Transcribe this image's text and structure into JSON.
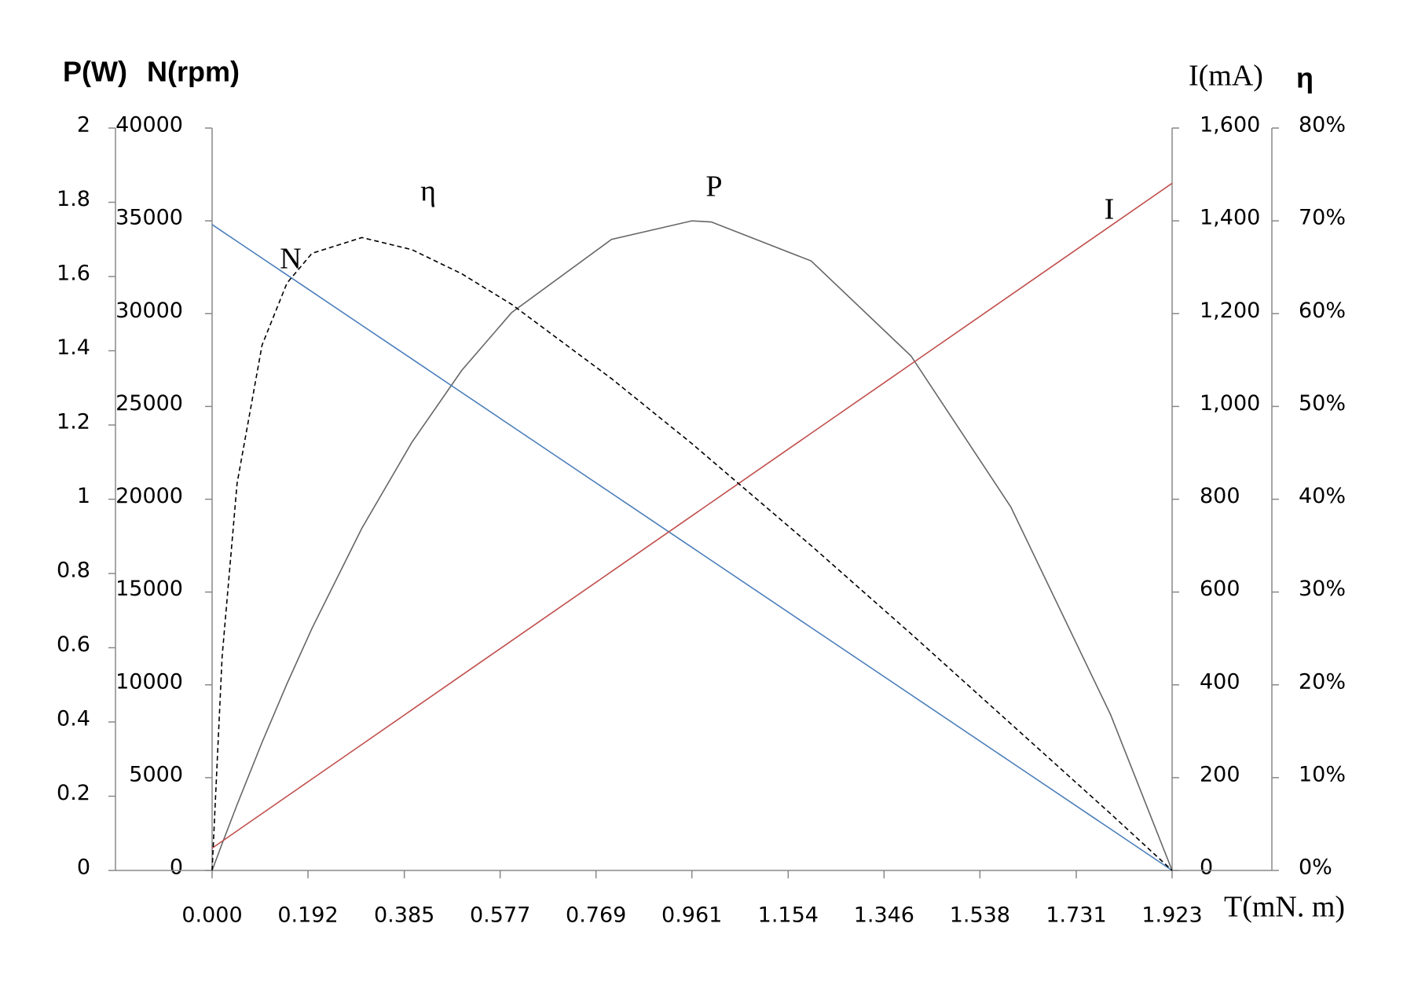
{
  "chart_data": {
    "type": "line",
    "x_label": "T(mN. m)",
    "y_label": "P(W)",
    "y2_label": "N(rpm)",
    "y3_label": "I(mA)",
    "y4_label": "η",
    "annotations": [
      "η",
      "P",
      "N",
      "I"
    ],
    "x": [
      0,
      0.02,
      0.05,
      0.1,
      0.15,
      0.2,
      0.3,
      0.4,
      0.5,
      0.6,
      0.8,
      0.961,
      1.0,
      1.2,
      1.4,
      1.6,
      1.8,
      1.923
    ],
    "series": [
      {
        "name": "P",
        "color": "#666666",
        "axis": "y",
        "dashed": false,
        "values": [
          0,
          0.072,
          0.177,
          0.345,
          0.503,
          0.652,
          0.922,
          1.153,
          1.347,
          1.503,
          1.7,
          1.75,
          1.747,
          1.642,
          1.386,
          0.979,
          0.419,
          0
        ]
      },
      {
        "name": "N",
        "color": "#4a7ebb",
        "axis": "y2",
        "dashed": false,
        "values": [
          34800,
          34438,
          33895,
          32990,
          32086,
          31181,
          29371,
          27562,
          25752,
          23942,
          20323,
          17410,
          16704,
          13085,
          9466,
          5846,
          2227,
          0
        ]
      },
      {
        "name": "I",
        "color": "#c0504d",
        "axis": "y3",
        "dashed": false,
        "values": [
          48,
          62.9,
          85.3,
          122.5,
          159.8,
          197,
          271.5,
          346.1,
          420.6,
          495.1,
          644.1,
          764.1,
          793.2,
          942.2,
          1091.2,
          1240.3,
          1389.3,
          1481
        ]
      },
      {
        "name": "η",
        "color": "#000000",
        "axis": "y4",
        "dashed": true,
        "values": [
          0,
          23,
          41.7,
          56.6,
          63.3,
          66.5,
          68.2,
          66.9,
          64.3,
          61,
          53,
          46,
          44.2,
          35,
          25.5,
          15.8,
          6.1,
          0
        ]
      }
    ],
    "xlim": [
      0,
      1.923
    ],
    "xticks": [
      {
        "value": 0,
        "label": "0.000"
      },
      0.192,
      0.385,
      0.577,
      0.769,
      0.961,
      1.154,
      1.346,
      1.538,
      1.731,
      1.923
    ],
    "ylim": [
      0,
      2
    ],
    "yticks": [
      0,
      0.2,
      0.4,
      0.6,
      0.8,
      1,
      1.2,
      1.4,
      1.6,
      1.8,
      2
    ],
    "y2lim": [
      0,
      40000
    ],
    "y2ticks": [
      0,
      5000,
      10000,
      15000,
      20000,
      25000,
      30000,
      35000,
      40000
    ],
    "y3lim": [
      0,
      1600
    ],
    "y3ticks": [
      0,
      200,
      400,
      600,
      800,
      {
        "value": 1000,
        "label": "1,000"
      },
      {
        "value": 1200,
        "label": "1,200"
      },
      {
        "value": 1400,
        "label": "1,400"
      },
      {
        "value": 1600,
        "label": "1,600"
      }
    ],
    "y4lim": [
      0,
      80
    ],
    "y4ticks": [
      {
        "value": 0,
        "label": "0%"
      },
      {
        "value": 10,
        "label": "10%"
      },
      {
        "value": 20,
        "label": "20%"
      },
      {
        "value": 30,
        "label": "30%"
      },
      {
        "value": 40,
        "label": "40%"
      },
      {
        "value": 50,
        "label": "50%"
      },
      {
        "value": 60,
        "label": "60%"
      },
      {
        "value": 70,
        "label": "70%"
      },
      {
        "value": 80,
        "label": "80%"
      }
    ],
    "grid": false
  }
}
